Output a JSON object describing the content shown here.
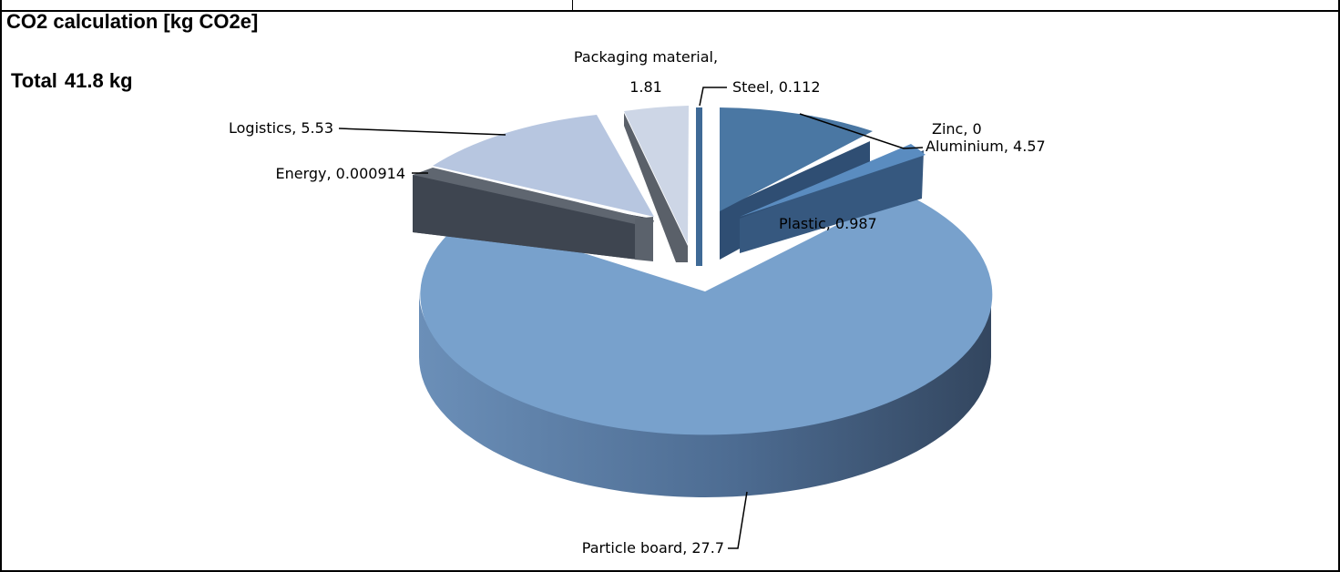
{
  "title": "CO2 calculation [kg CO2e]",
  "total": {
    "label": "Total",
    "value": "41.8 kg"
  },
  "chart_data": {
    "type": "pie",
    "style": "3d-exploded",
    "title": "CO2 calculation [kg CO2e]",
    "labels": [
      "Steel",
      "Zinc",
      "Aluminium",
      "Plastic",
      "Particle board",
      "Energy",
      "Logistics",
      "Packaging material"
    ],
    "values": [
      0.112,
      0,
      4.57,
      0.987,
      27.7,
      0.000914,
      5.53,
      1.81
    ],
    "data_labels": {
      "steel": "Steel, 0.112",
      "zinc": "Zinc, 0",
      "aluminium": "Aluminium, 4.57",
      "plastic": "Plastic, 0.987",
      "particle": "Particle board, 27.7",
      "energy": "Energy, 0.000914",
      "logistics": "Logistics, 5.53",
      "packaging_line1": "Packaging material,",
      "packaging_line2": "1.81"
    },
    "colors": {
      "steel": "#3f6a96",
      "aluminium": "#4a77a3",
      "plastic": "#5a8cc0",
      "particle": "#78a1cc",
      "energy": "#5f6670",
      "logistics": "#b7c6e0",
      "packaging": "#cdd6e6"
    },
    "legend": "none"
  }
}
